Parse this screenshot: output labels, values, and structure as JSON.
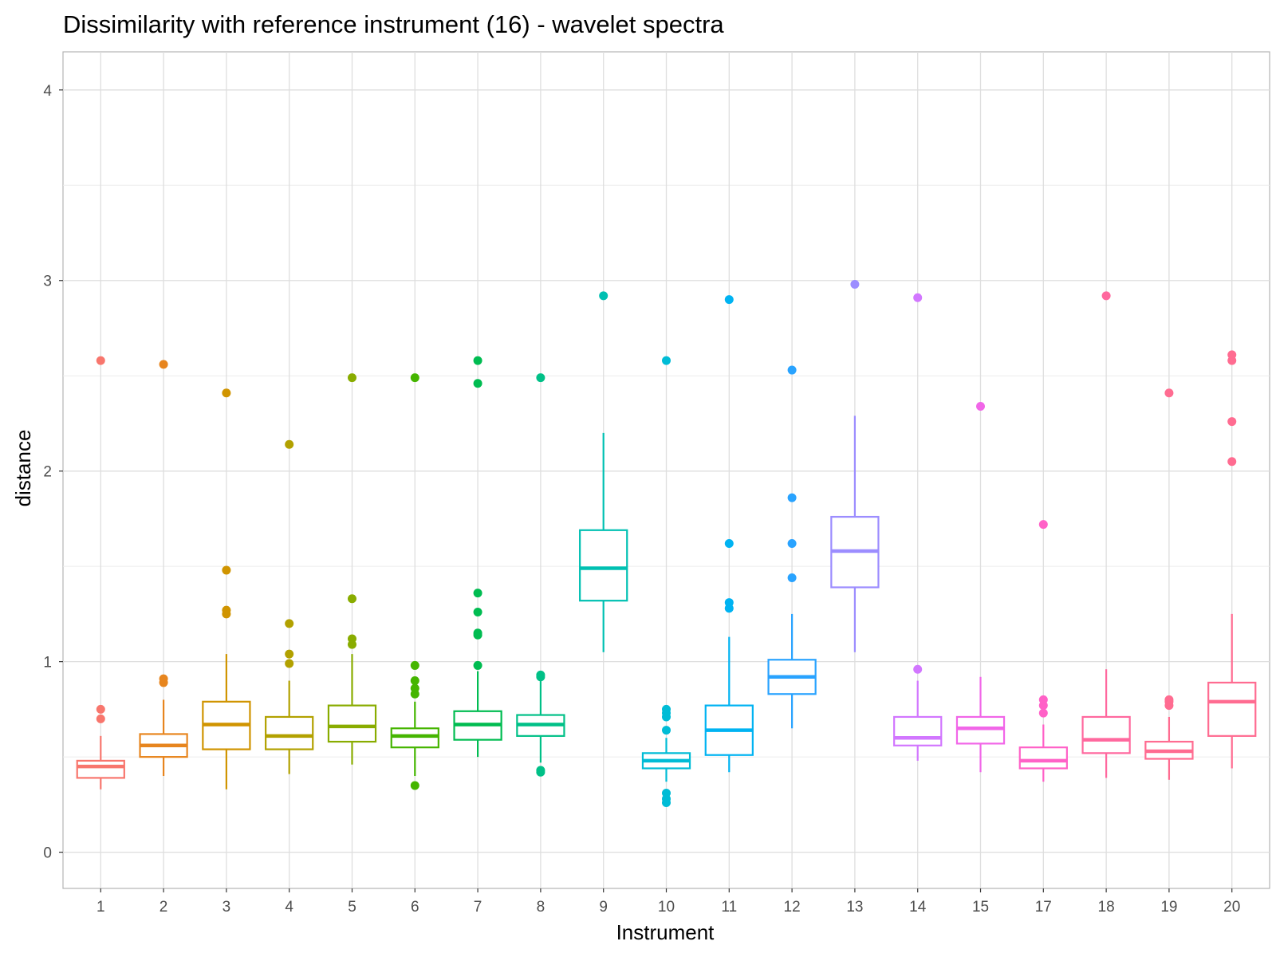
{
  "chart_data": {
    "type": "boxplot",
    "title": "Dissimilarity with reference instrument (16) - wavelet spectra",
    "xlabel": "Instrument",
    "ylabel": "distance",
    "ylim": [
      -0.19,
      4.2
    ],
    "yticks": [
      0,
      1,
      2,
      3,
      4
    ],
    "yticks_labels": [
      "0",
      "1",
      "2",
      "3",
      "4"
    ],
    "grid": true,
    "legend": "none",
    "categories": [
      "1",
      "2",
      "3",
      "4",
      "5",
      "6",
      "7",
      "8",
      "9",
      "10",
      "11",
      "12",
      "13",
      "14",
      "15",
      "17",
      "18",
      "19",
      "20"
    ],
    "colors": [
      "#F8766D",
      "#E7851E",
      "#D09400",
      "#B2A100",
      "#89AC00",
      "#45B500",
      "#00BC51",
      "#00C087",
      "#00C0B2",
      "#00BCD6",
      "#00B3F2",
      "#29A3FF",
      "#9C8DFF",
      "#D277FF",
      "#F166E8",
      "#FF61C7",
      "#FF689E",
      "#FF6C91",
      "#FF6C91"
    ],
    "boxes": [
      {
        "category": "1",
        "lower_whisker": 0.33,
        "q1": 0.39,
        "median": 0.45,
        "q3": 0.48,
        "upper_whisker": 0.61,
        "outliers": [
          0.7,
          0.75,
          2.58
        ]
      },
      {
        "category": "2",
        "lower_whisker": 0.4,
        "q1": 0.5,
        "median": 0.56,
        "q3": 0.62,
        "upper_whisker": 0.8,
        "outliers": [
          0.89,
          0.91,
          2.56
        ]
      },
      {
        "category": "3",
        "lower_whisker": 0.33,
        "q1": 0.54,
        "median": 0.67,
        "q3": 0.79,
        "upper_whisker": 1.04,
        "outliers": [
          1.25,
          1.27,
          1.48,
          2.41
        ]
      },
      {
        "category": "4",
        "lower_whisker": 0.41,
        "q1": 0.54,
        "median": 0.61,
        "q3": 0.71,
        "upper_whisker": 0.9,
        "outliers": [
          0.99,
          1.04,
          1.2,
          2.14
        ]
      },
      {
        "category": "5",
        "lower_whisker": 0.46,
        "q1": 0.58,
        "median": 0.66,
        "q3": 0.77,
        "upper_whisker": 1.04,
        "outliers": [
          1.09,
          1.12,
          1.33,
          2.49
        ]
      },
      {
        "category": "6",
        "lower_whisker": 0.4,
        "q1": 0.55,
        "median": 0.61,
        "q3": 0.65,
        "upper_whisker": 0.79,
        "outliers": [
          0.35,
          0.83,
          0.86,
          0.9,
          0.98,
          2.49
        ]
      },
      {
        "category": "7",
        "lower_whisker": 0.5,
        "q1": 0.59,
        "median": 0.67,
        "q3": 0.74,
        "upper_whisker": 0.95,
        "outliers": [
          0.98,
          1.14,
          1.15,
          1.26,
          1.36,
          2.46,
          2.58
        ]
      },
      {
        "category": "8",
        "lower_whisker": 0.47,
        "q1": 0.61,
        "median": 0.67,
        "q3": 0.72,
        "upper_whisker": 0.9,
        "outliers": [
          0.42,
          0.43,
          0.92,
          0.93,
          2.49
        ]
      },
      {
        "category": "9",
        "lower_whisker": 1.05,
        "q1": 1.32,
        "median": 1.49,
        "q3": 1.69,
        "upper_whisker": 2.2,
        "outliers": [
          2.92
        ]
      },
      {
        "category": "10",
        "lower_whisker": 0.37,
        "q1": 0.44,
        "median": 0.48,
        "q3": 0.52,
        "upper_whisker": 0.6,
        "outliers": [
          0.26,
          0.28,
          0.31,
          0.64,
          0.71,
          0.73,
          0.75,
          2.58
        ]
      },
      {
        "category": "11",
        "lower_whisker": 0.42,
        "q1": 0.51,
        "median": 0.64,
        "q3": 0.77,
        "upper_whisker": 1.13,
        "outliers": [
          1.28,
          1.31,
          1.62,
          2.9
        ]
      },
      {
        "category": "12",
        "lower_whisker": 0.65,
        "q1": 0.83,
        "median": 0.92,
        "q3": 1.01,
        "upper_whisker": 1.25,
        "outliers": [
          1.44,
          1.62,
          1.86,
          2.53
        ]
      },
      {
        "category": "13",
        "lower_whisker": 1.05,
        "q1": 1.39,
        "median": 1.58,
        "q3": 1.76,
        "upper_whisker": 2.29,
        "outliers": [
          2.98
        ]
      },
      {
        "category": "14",
        "lower_whisker": 0.48,
        "q1": 0.56,
        "median": 0.6,
        "q3": 0.71,
        "upper_whisker": 0.9,
        "outliers": [
          0.96,
          2.91
        ]
      },
      {
        "category": "15",
        "lower_whisker": 0.42,
        "q1": 0.57,
        "median": 0.65,
        "q3": 0.71,
        "upper_whisker": 0.92,
        "outliers": [
          2.34
        ]
      },
      {
        "category": "17",
        "lower_whisker": 0.37,
        "q1": 0.44,
        "median": 0.48,
        "q3": 0.55,
        "upper_whisker": 0.67,
        "outliers": [
          0.73,
          0.77,
          0.8,
          1.72
        ]
      },
      {
        "category": "18",
        "lower_whisker": 0.39,
        "q1": 0.52,
        "median": 0.59,
        "q3": 0.71,
        "upper_whisker": 0.96,
        "outliers": [
          2.92
        ]
      },
      {
        "category": "19",
        "lower_whisker": 0.38,
        "q1": 0.49,
        "median": 0.53,
        "q3": 0.58,
        "upper_whisker": 0.71,
        "outliers": [
          0.77,
          0.79,
          0.8,
          2.41
        ]
      },
      {
        "category": "20",
        "lower_whisker": 0.44,
        "q1": 0.61,
        "median": 0.79,
        "q3": 0.89,
        "upper_whisker": 1.25,
        "outliers": [
          2.05,
          2.26,
          2.58,
          2.61
        ]
      }
    ]
  }
}
